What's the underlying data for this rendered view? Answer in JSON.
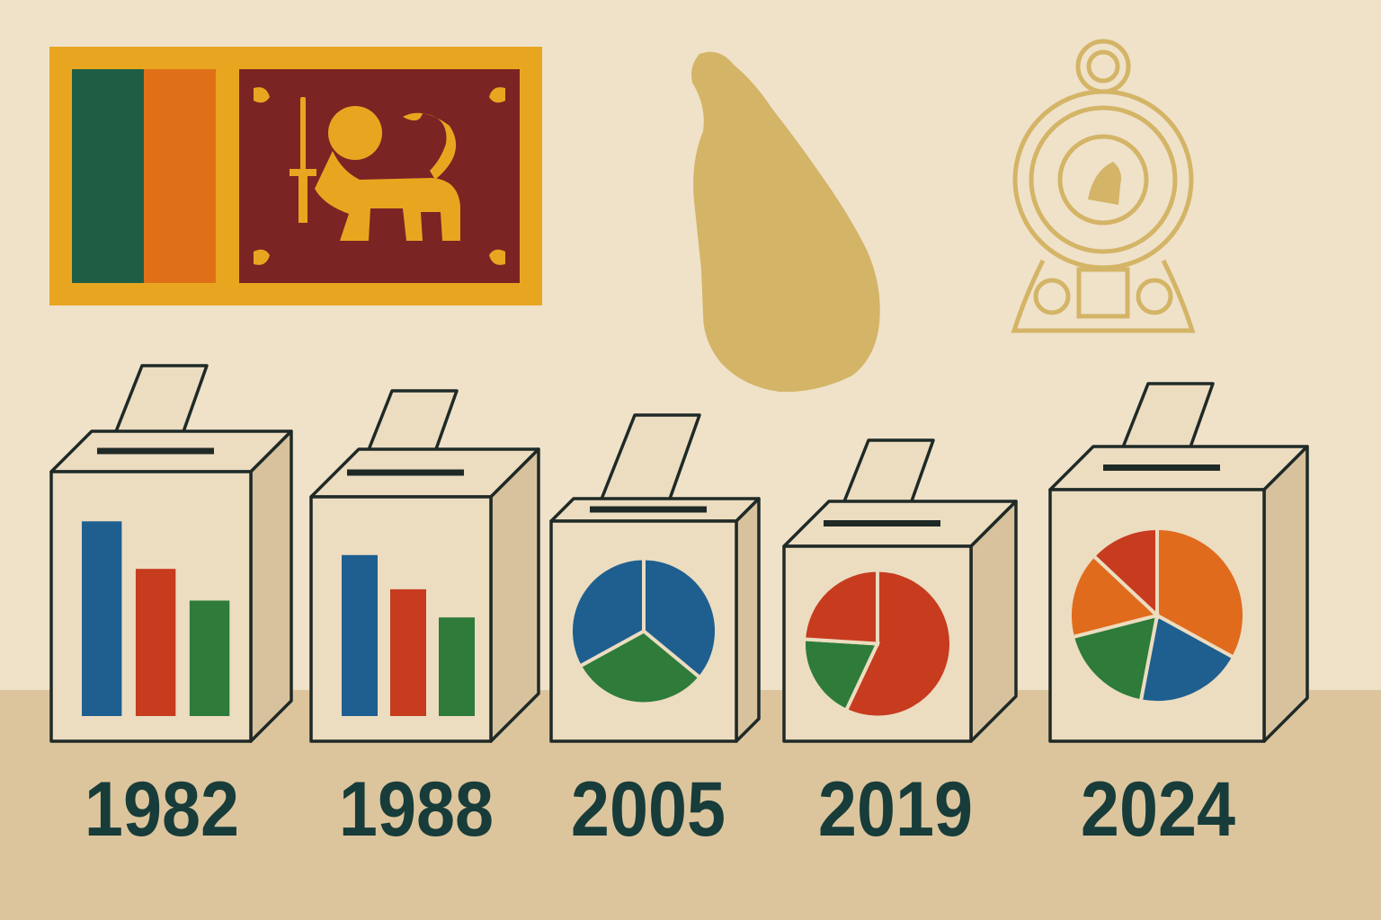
{
  "colors": {
    "background": "#efe2c9",
    "floor": "#dcc59d",
    "flag_border": "#e8a620",
    "flag_green": "#1f5e45",
    "flag_orange": "#e07018",
    "flag_maroon": "#7a2424",
    "gold": "#d4b466",
    "box_face": "#ecdcc0",
    "box_side": "#d8c29e",
    "outline": "#1f2a27",
    "blue": "#1e5f8f",
    "red": "#c73b1e",
    "green": "#2e7b3a",
    "orange": "#e06b1c",
    "year_text": "#173c3a"
  },
  "flag": {
    "name": "sri-lanka-flag"
  },
  "map": {
    "name": "sri-lanka-map"
  },
  "emblem": {
    "name": "sri-lanka-emblem"
  },
  "ballot_boxes": [
    {
      "year": "1982",
      "chart_type": "bar",
      "bars": [
        0.86,
        0.65,
        0.51
      ],
      "bar_colors": [
        "blue",
        "red",
        "green"
      ]
    },
    {
      "year": "1988",
      "chart_type": "bar",
      "bars": [
        0.8,
        0.63,
        0.49
      ],
      "bar_colors": [
        "blue",
        "red",
        "green"
      ]
    },
    {
      "year": "2005",
      "chart_type": "pie",
      "slices": [
        {
          "share": 0.36,
          "color": "blue"
        },
        {
          "share": 0.31,
          "color": "green"
        },
        {
          "share": 0.33,
          "color": "blue"
        }
      ]
    },
    {
      "year": "2019",
      "chart_type": "pie",
      "slices": [
        {
          "share": 0.57,
          "color": "red"
        },
        {
          "share": 0.19,
          "color": "green"
        },
        {
          "share": 0.24,
          "color": "red"
        }
      ]
    },
    {
      "year": "2024",
      "chart_type": "pie",
      "slices": [
        {
          "share": 0.33,
          "color": "orange"
        },
        {
          "share": 0.2,
          "color": "blue"
        },
        {
          "share": 0.18,
          "color": "green"
        },
        {
          "share": 0.16,
          "color": "orange"
        },
        {
          "share": 0.13,
          "color": "red"
        }
      ]
    }
  ]
}
